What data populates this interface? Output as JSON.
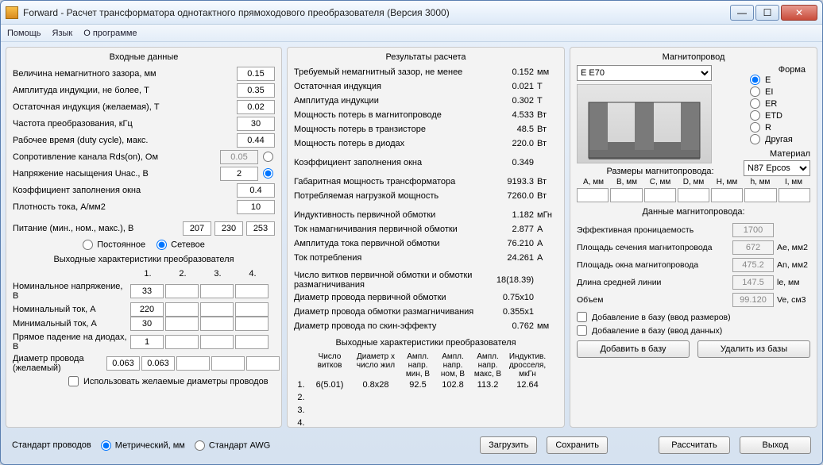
{
  "window": {
    "title": "Forward - Расчет трансформатора однотактного прямоходового преобразователя (Версия 3000)"
  },
  "menu": {
    "help": "Помощь",
    "lang": "Язык",
    "about": "О программе"
  },
  "input": {
    "title": "Входные данные",
    "gap_label": "Величина немагнитного зазора, мм",
    "gap": "0.15",
    "bmax_label": "Амплитуда индукции, не более, T",
    "bmax": "0.35",
    "brem_label": "Остаточная индукция (желаемая), T",
    "brem": "0.02",
    "freq_label": "Частота преобразования, кГц",
    "freq": "30",
    "duty_label": "Рабочее время (duty cycle), макс.",
    "duty": "0.44",
    "rds_label": "Сопротивление канала Rds(on), Ом",
    "rds": "0.05",
    "usat_label": "Напряжение насыщения Uнас., В",
    "usat": "2",
    "kfill_label": "Коэффициент заполнения окна",
    "kfill": "0.4",
    "jdens_label": "Плотность тока, А/мм2",
    "jdens": "10",
    "supply_label": "Питание (мин., ном., макс.), В",
    "supply_min": "207",
    "supply_nom": "230",
    "supply_max": "253",
    "dc": "Постоянное",
    "ac": "Сетевое",
    "out_title": "Выходные характеристики преобразователя",
    "hd1": "1.",
    "hd2": "2.",
    "hd3": "3.",
    "hd4": "4.",
    "vnom_label": "Номинальное напряжение, В",
    "vnom1": "33",
    "inom_label": "Номинальный ток, А",
    "inom1": "220",
    "imin_label": "Минимальный ток, А",
    "imin1": "30",
    "vdrop_label": "Прямое падение на диодах, В",
    "vdrop1": "1",
    "dw_label": "Диаметр провода (желаемый)",
    "dw0": "0.063",
    "dw1": "0.063",
    "usedw": "Использовать желаемые диаметры проводов"
  },
  "results": {
    "title": "Результаты расчета",
    "rows": [
      [
        "Требуемый немагнитный зазор, не менее",
        "0.152",
        "мм"
      ],
      [
        "Остаточная индукция",
        "0.021",
        "T"
      ],
      [
        "Амплитуда индукции",
        "0.302",
        "T"
      ],
      [
        "Мощность потерь в магнитопроводе",
        "4.533",
        "Вт"
      ],
      [
        "Мощность потерь в транзисторе",
        "48.5",
        "Вт"
      ],
      [
        "Мощность потерь в диодах",
        "220.0",
        "Вт"
      ]
    ],
    "kwin_label": "Коэффициент заполнения окна",
    "kwin": "0.349",
    "pgab_label": "Габаритная мощность трансформатора",
    "pgab": "9193.3",
    "pgab_u": "Вт",
    "pload_label": "Потребляемая нагрузкой мощность",
    "pload": "7260.0",
    "pload_u": "Вт",
    "lprim_label": "Индуктивность первичной обмотки",
    "lprim": "1.182",
    "lprim_u": "мГн",
    "imag_label": "Ток намагничивания первичной обмотки",
    "imag": "2.877",
    "imag_u": "А",
    "iprim_label": "Амплитуда тока первичной обмотки",
    "iprim": "76.210",
    "iprim_u": "А",
    "itot_label": "Ток потребления",
    "itot": "24.261",
    "itot_u": "А",
    "nprim_label": "Число витков первичной обмотки и обмотки размагничивания",
    "nprim": "18(18.39)",
    "dwp_label": "Диаметр провода первичной обмотки",
    "dwp": "0.75x10",
    "dwr_label": "Диаметр провода обмотки размагничивания",
    "dwr": "0.355x1",
    "dws_label": "Диаметр провода по скин-эффекту",
    "dws": "0.762",
    "dws_u": "мм",
    "out_title": "Выходные характеристики преобразователя",
    "oh": [
      "",
      "Число витков",
      "Диаметр x число жил",
      "Ампл. напр. мин, В",
      "Ампл. напр. ном, В",
      "Ампл. напр. макс, В",
      "Индуктив. дросселя, мкГн"
    ],
    "orow": [
      "1.",
      "6(5.01)",
      "0.8x28",
      "92.5",
      "102.8",
      "113.2",
      "12.64"
    ],
    "nums": [
      "2.",
      "3.",
      "4."
    ]
  },
  "core": {
    "title": "Магнитопровод",
    "shape_label": "Форма",
    "select": "E E70",
    "shapes": [
      "E",
      "EI",
      "ER",
      "ETD",
      "R",
      "Другая"
    ],
    "material_label": "Материал",
    "material": "N87 Epcos",
    "dims_label": "Размеры магнитопровода:",
    "dimh": [
      "A, мм",
      "B, мм",
      "C, мм",
      "D, мм",
      "H, мм",
      "h, мм",
      "I, мм"
    ],
    "data_label": "Данные магнитопровода:",
    "mu_label": "Эффективная проницаемость",
    "mu": "1700",
    "ae_label": "Площадь сечения магнитопровода",
    "ae": "672",
    "ae_u": "Ae, мм2",
    "an_label": "Площадь окна магнитопровода",
    "an": "475.2",
    "an_u": "An, мм2",
    "le_label": "Длина средней линии",
    "le": "147.5",
    "le_u": "le, мм",
    "ve_label": "Объем",
    "ve": "99.120",
    "ve_u": "Ve, см3",
    "chk1": "Добавление в базу (ввод размеров)",
    "chk2": "Добавление в базу (ввод данных)",
    "btn_add": "Добавить в базу",
    "btn_del": "Удалить из базы"
  },
  "footer": {
    "std_label": "Стандарт проводов",
    "metric": "Метрический, мм",
    "awg": "Стандарт AWG",
    "load": "Загрузить",
    "save": "Сохранить",
    "calc": "Рассчитать",
    "exit": "Выход"
  }
}
